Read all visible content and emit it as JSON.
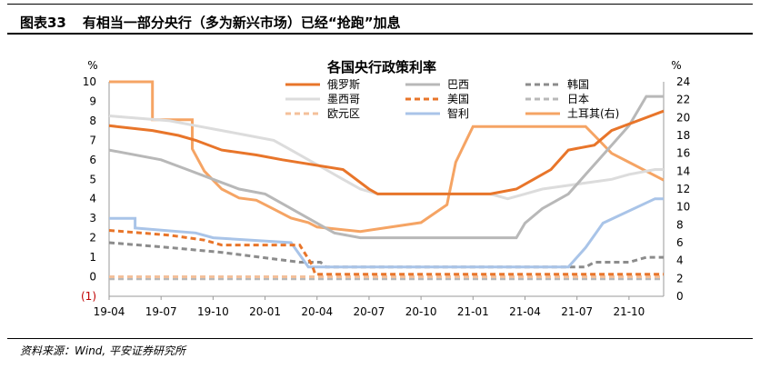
{
  "header": {
    "figure_no": "图表33",
    "title": "有相当一部分央行（多为新兴市场）已经“抢跑”加息"
  },
  "footer": {
    "source": "资料来源：Wind, 平安证券研究所"
  },
  "chart_data": {
    "type": "line",
    "title": "各国央行政策利率",
    "y_left_unit": "%",
    "y_right_unit": "%",
    "y_left_range": [
      -1,
      10
    ],
    "y_right_range": [
      0,
      24
    ],
    "y_left_ticks": [
      "(1)",
      "0",
      "1",
      "2",
      "3",
      "4",
      "5",
      "6",
      "7",
      "8",
      "9",
      "10"
    ],
    "y_right_ticks": [
      "0",
      "2",
      "4",
      "6",
      "8",
      "10",
      "12",
      "14",
      "16",
      "18",
      "20",
      "22",
      "24"
    ],
    "x_ticks": [
      "19-04",
      "19-07",
      "19-10",
      "20-01",
      "20-04",
      "20-07",
      "20-10",
      "21-01",
      "21-04",
      "21-07",
      "21-10"
    ],
    "legend": [
      {
        "key": "russia",
        "label": "俄罗斯"
      },
      {
        "key": "brazil",
        "label": "巴西"
      },
      {
        "key": "korea",
        "label": "韩国"
      },
      {
        "key": "mexico",
        "label": "墨西哥"
      },
      {
        "key": "us",
        "label": "美国"
      },
      {
        "key": "japan",
        "label": "日本"
      },
      {
        "key": "euro",
        "label": "欧元区"
      },
      {
        "key": "chile",
        "label": "智利"
      },
      {
        "key": "turkey",
        "label": "土耳其(右)"
      }
    ],
    "series": [
      {
        "key": "russia",
        "name": "俄罗斯",
        "axis": "left",
        "color": "#e8752a",
        "dash": "",
        "width": 3,
        "points": [
          [
            0,
            7.75
          ],
          [
            2.5,
            7.5
          ],
          [
            4,
            7.25
          ],
          [
            5,
            7.0
          ],
          [
            6.5,
            6.5
          ],
          [
            8.5,
            6.25
          ],
          [
            10,
            6.0
          ],
          [
            13.5,
            5.5
          ],
          [
            15,
            4.5
          ],
          [
            15.5,
            4.25
          ],
          [
            22,
            4.25
          ],
          [
            23.5,
            4.5
          ],
          [
            24.5,
            5.0
          ],
          [
            25.5,
            5.5
          ],
          [
            26.5,
            6.5
          ],
          [
            28,
            6.75
          ],
          [
            29,
            7.5
          ],
          [
            32,
            8.5
          ]
        ]
      },
      {
        "key": "brazil",
        "name": "巴西",
        "axis": "left",
        "color": "#b8b8b8",
        "dash": "",
        "width": 3,
        "points": [
          [
            0,
            6.5
          ],
          [
            3,
            6.0
          ],
          [
            4.5,
            5.5
          ],
          [
            6,
            5.0
          ],
          [
            7.5,
            4.5
          ],
          [
            9,
            4.25
          ],
          [
            10,
            3.75
          ],
          [
            11.5,
            3.0
          ],
          [
            13,
            2.25
          ],
          [
            14.5,
            2.0
          ],
          [
            23.5,
            2.0
          ],
          [
            24,
            2.75
          ],
          [
            25,
            3.5
          ],
          [
            26.5,
            4.25
          ],
          [
            27.5,
            5.25
          ],
          [
            28.5,
            6.25
          ],
          [
            30,
            7.75
          ],
          [
            31,
            9.25
          ],
          [
            32,
            9.25
          ]
        ]
      },
      {
        "key": "korea",
        "name": "韩国",
        "axis": "left",
        "color": "#8c8c8c",
        "dash": "6,4",
        "width": 3,
        "points": [
          [
            0,
            1.75
          ],
          [
            3.5,
            1.5
          ],
          [
            6.5,
            1.25
          ],
          [
            11,
            0.75
          ],
          [
            12.2,
            0.75
          ],
          [
            12.5,
            0.5
          ],
          [
            27.5,
            0.5
          ],
          [
            28,
            0.75
          ],
          [
            30,
            0.75
          ],
          [
            31,
            1.0
          ],
          [
            32,
            1.0
          ]
        ]
      },
      {
        "key": "mexico",
        "name": "墨西哥",
        "axis": "left",
        "color": "#dcdcdc",
        "dash": "",
        "width": 3,
        "points": [
          [
            0,
            8.25
          ],
          [
            3.5,
            8.0
          ],
          [
            5,
            7.75
          ],
          [
            6.5,
            7.5
          ],
          [
            8,
            7.25
          ],
          [
            9.5,
            7.0
          ],
          [
            10.5,
            6.5
          ],
          [
            11.5,
            6.0
          ],
          [
            12.5,
            5.5
          ],
          [
            13.5,
            5.0
          ],
          [
            14.5,
            4.5
          ],
          [
            15.5,
            4.25
          ],
          [
            22,
            4.25
          ],
          [
            23,
            4.0
          ],
          [
            24,
            4.25
          ],
          [
            25,
            4.5
          ],
          [
            27,
            4.75
          ],
          [
            29,
            5.0
          ],
          [
            30,
            5.25
          ],
          [
            31.5,
            5.5
          ],
          [
            32,
            5.5
          ]
        ]
      },
      {
        "key": "us",
        "name": "美国",
        "axis": "left",
        "color": "#e8752a",
        "dash": "6,4",
        "width": 3,
        "points": [
          [
            0,
            2.38
          ],
          [
            3.5,
            2.13
          ],
          [
            5.5,
            1.88
          ],
          [
            6.5,
            1.63
          ],
          [
            11,
            1.63
          ],
          [
            11.7,
            0.63
          ],
          [
            11.9,
            0.13
          ],
          [
            32,
            0.13
          ]
        ]
      },
      {
        "key": "japan",
        "name": "日本",
        "axis": "left",
        "color": "#b8b8b8",
        "dash": "6,4",
        "width": 3,
        "points": [
          [
            0,
            -0.1
          ],
          [
            32,
            -0.1
          ]
        ]
      },
      {
        "key": "euro",
        "name": "欧元区",
        "axis": "left",
        "color": "#f4c09a",
        "dash": "6,4",
        "width": 3,
        "points": [
          [
            0,
            0.0
          ],
          [
            32,
            0.0
          ]
        ]
      },
      {
        "key": "chile",
        "name": "智利",
        "axis": "left",
        "color": "#a9c4e8",
        "dash": "",
        "width": 3,
        "points": [
          [
            0,
            3.0
          ],
          [
            1.5,
            3.0
          ],
          [
            1.5,
            2.5
          ],
          [
            5,
            2.25
          ],
          [
            6,
            2.0
          ],
          [
            10.5,
            1.75
          ],
          [
            11.5,
            0.5
          ],
          [
            26.5,
            0.5
          ],
          [
            27.5,
            1.5
          ],
          [
            28.5,
            2.75
          ],
          [
            31.5,
            4.0
          ],
          [
            32,
            4.0
          ]
        ]
      },
      {
        "key": "turkey",
        "name": "土耳其(右)",
        "axis": "right",
        "color": "#f5a464",
        "dash": "",
        "width": 3,
        "points": [
          [
            0,
            24.0
          ],
          [
            2.5,
            24.0
          ],
          [
            2.5,
            19.75
          ],
          [
            4.8,
            19.75
          ],
          [
            4.8,
            16.5
          ],
          [
            5.5,
            14.0
          ],
          [
            6.5,
            12.0
          ],
          [
            7.5,
            11.0
          ],
          [
            8.5,
            10.75
          ],
          [
            9.5,
            9.75
          ],
          [
            10.5,
            8.75
          ],
          [
            11.5,
            8.25
          ],
          [
            12,
            7.75
          ],
          [
            14.5,
            7.25
          ],
          [
            18,
            8.25
          ],
          [
            19.5,
            10.25
          ],
          [
            20,
            15.0
          ],
          [
            20.5,
            17.0
          ],
          [
            21,
            19.0
          ],
          [
            27.5,
            19.0
          ],
          [
            28,
            18.0
          ],
          [
            29,
            16.0
          ],
          [
            30,
            15.0
          ],
          [
            31,
            14.0
          ],
          [
            32,
            13.0
          ]
        ]
      }
    ]
  }
}
